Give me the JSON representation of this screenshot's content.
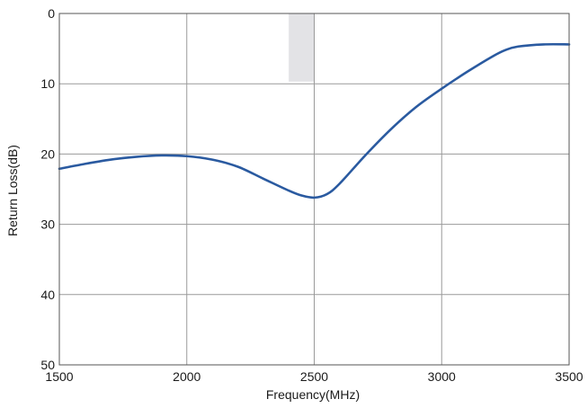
{
  "chart_data": {
    "type": "line",
    "title": "",
    "xlabel": "Frequency(MHz)",
    "ylabel": "Return Loss(dB)",
    "xlim": [
      1500,
      3500
    ],
    "ylim": [
      0,
      50
    ],
    "y_inverted": true,
    "grid": true,
    "x_ticks": [
      "1500",
      "2000",
      "2500",
      "3000",
      "3500"
    ],
    "y_ticks": [
      "0",
      "10",
      "20",
      "30",
      "40",
      "50"
    ],
    "band_highlight": {
      "x_range": [
        2400,
        2500
      ],
      "y_range": [
        0,
        9.7
      ],
      "color": "#e3e3e6"
    },
    "series": [
      {
        "color": "#2a5aa0",
        "x": [
          1500,
          1600,
          1700,
          1800,
          1900,
          2000,
          2100,
          2200,
          2300,
          2400,
          2450,
          2500,
          2550,
          2600,
          2700,
          2800,
          2900,
          3000,
          3100,
          3200,
          3250,
          3300,
          3400,
          3500
        ],
        "y": [
          22.1,
          21.4,
          20.8,
          20.4,
          20.2,
          20.3,
          20.8,
          21.8,
          23.5,
          25.2,
          25.9,
          26.2,
          25.7,
          24.2,
          20.2,
          16.5,
          13.3,
          10.7,
          8.3,
          6.1,
          5.2,
          4.7,
          4.4,
          4.4
        ]
      }
    ]
  }
}
